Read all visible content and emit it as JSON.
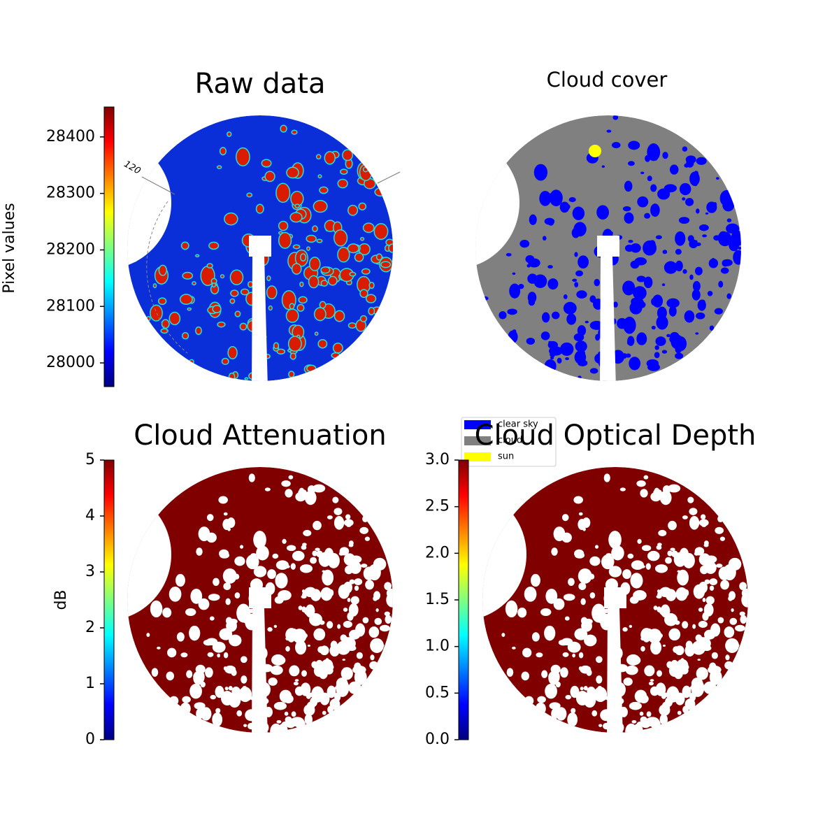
{
  "chart_data": [
    {
      "type": "image",
      "title": "Raw data",
      "colormap": "jet",
      "ylabel": "Pixel values",
      "ylim": [
        27958,
        28453
      ],
      "yticks": [
        28000,
        28100,
        28200,
        28300,
        28400
      ],
      "annotations": [
        "120"
      ]
    },
    {
      "type": "image",
      "title": "Cloud cover",
      "legend": "lower left",
      "series": [
        {
          "name": "clear sky",
          "color": "#0000ff"
        },
        {
          "name": "cloud",
          "color": "#808080"
        },
        {
          "name": "sun",
          "color": "#ffff00"
        }
      ]
    },
    {
      "type": "image",
      "title": "Cloud Attenuation",
      "colormap": "jet",
      "ylabel": "dB",
      "ylim": [
        0,
        5
      ],
      "yticks": [
        0,
        1,
        2,
        3,
        4,
        5
      ]
    },
    {
      "type": "image",
      "title": "Cloud Optical Depth",
      "colormap": "jet",
      "ylim": [
        0,
        3
      ],
      "yticks": [
        {
          "value": 0,
          "label": "0.0"
        },
        0.5,
        {
          "value": 1,
          "label": "1.0"
        },
        1.5,
        {
          "value": 2,
          "label": "2.0"
        },
        2.5,
        {
          "value": 3,
          "label": "3.0"
        }
      ]
    }
  ]
}
